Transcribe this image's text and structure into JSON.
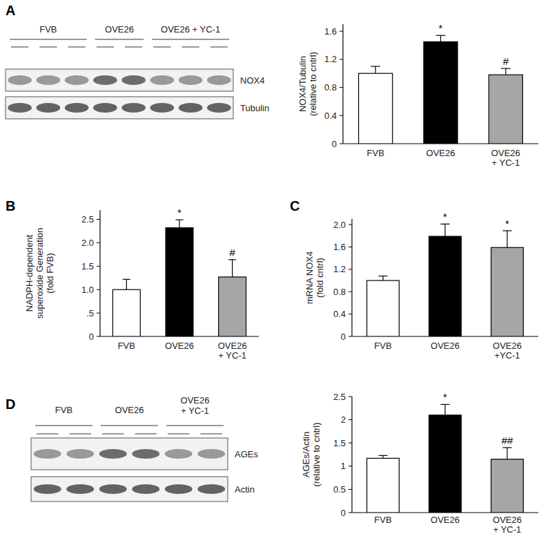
{
  "panel_labels": [
    "A",
    "B",
    "C",
    "D"
  ],
  "blots": [
    {
      "groups": [
        {
          "label": "FVB",
          "lanes": 3
        },
        {
          "label": "OVE26",
          "lanes": 2
        },
        {
          "label": "OVE26 + YC-1",
          "lanes": 3
        }
      ],
      "bands": [
        "NOX4",
        "Tubulin"
      ]
    },
    {
      "groups": [
        {
          "label": "FVB",
          "lanes": 2
        },
        {
          "label": "OVE26",
          "lanes": 2
        },
        {
          "label": "OVE26 + YC-1",
          "lanes": 2
        }
      ],
      "bands": [
        "AGEs",
        "Actin"
      ]
    }
  ],
  "chart_data": [
    {
      "type": "bar",
      "categories": [
        "FVB",
        "OVE26",
        "OVE26 + YC-1"
      ],
      "values": [
        1.0,
        1.45,
        0.98
      ],
      "errors": [
        0.1,
        0.09,
        0.09
      ],
      "significance": [
        null,
        "*",
        "#"
      ],
      "colors": [
        "#ffffff",
        "#000000",
        "#a6a6a6"
      ],
      "ylabel": [
        "NOX4/Tubulin",
        "(relative to cntrl)"
      ],
      "ylim": [
        0,
        1.7
      ],
      "yticks": [
        0,
        0.4,
        0.8,
        1.2,
        1.6
      ]
    },
    {
      "type": "bar",
      "categories": [
        "FVB",
        "OVE26",
        "OVE26 + YC-1"
      ],
      "values": [
        1.0,
        2.32,
        1.27
      ],
      "errors": [
        0.22,
        0.17,
        0.37
      ],
      "significance": [
        null,
        "*",
        "#"
      ],
      "colors": [
        "#ffffff",
        "#000000",
        "#a6a6a6"
      ],
      "ylabel": [
        "NADPH-dependent",
        "superoxide  Generation",
        "(fold FVB)"
      ],
      "ylim": [
        0,
        2.7
      ],
      "yticks": [
        0,
        {
          "value": 0.5,
          "label": ".5"
        },
        {
          "value": 1,
          "label": "1.0"
        },
        1.5,
        {
          "value": 2,
          "label": "2.0"
        },
        2.5
      ]
    },
    {
      "type": "bar",
      "categories": [
        "FVB",
        "OVE26",
        "OVE26 +YC-1"
      ],
      "values": [
        1.0,
        1.79,
        1.59
      ],
      "errors": [
        0.08,
        0.22,
        0.3
      ],
      "significance": [
        null,
        "*",
        "*"
      ],
      "colors": [
        "#ffffff",
        "#000000",
        "#a6a6a6"
      ],
      "ylabel": [
        "mRNA NOX4",
        "(fold cntrl)"
      ],
      "ylim": [
        0,
        2.1
      ],
      "yticks": [
        0,
        0.4,
        0.8,
        1.2,
        1.6,
        {
          "value": 2,
          "label": "2.0"
        }
      ]
    },
    {
      "type": "bar",
      "categories": [
        "FVB",
        "OVE26",
        "OVE26 + YC-1"
      ],
      "values": [
        1.17,
        2.1,
        1.15
      ],
      "errors": [
        0.06,
        0.23,
        0.25
      ],
      "significance": [
        null,
        "*",
        "##"
      ],
      "colors": [
        "#ffffff",
        "#000000",
        "#a6a6a6"
      ],
      "ylabel": [
        "AGEs/Actin",
        "(relative to cntrl)"
      ],
      "ylim": [
        0,
        2.5
      ],
      "yticks": [
        0,
        0.5,
        1,
        1.5,
        2,
        2.5
      ]
    }
  ]
}
